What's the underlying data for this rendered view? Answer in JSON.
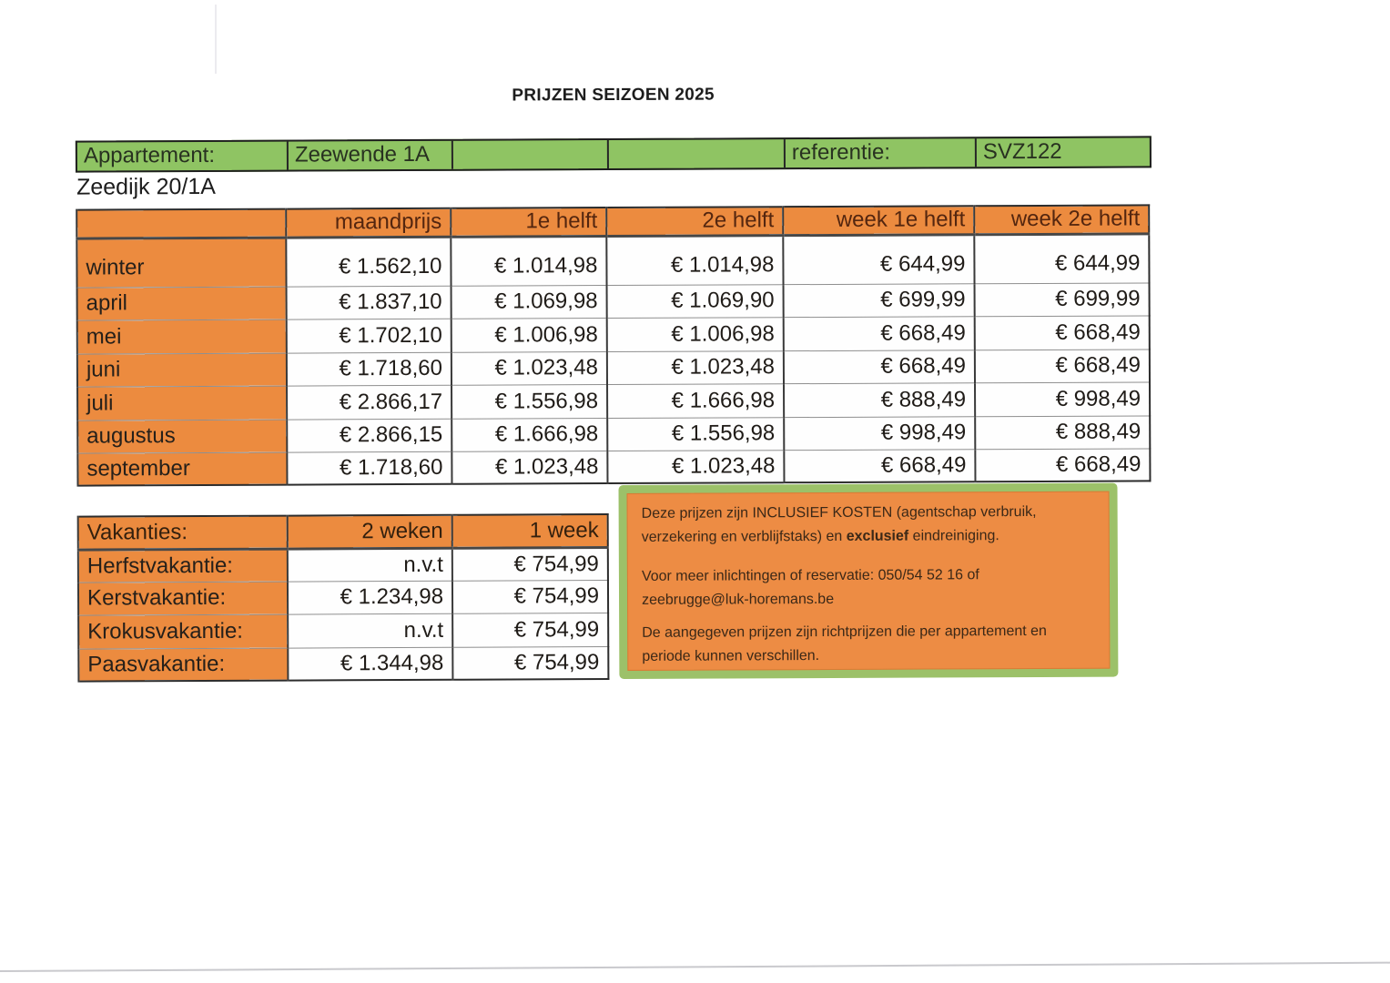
{
  "title": "PRIJZEN SEIZOEN 2025",
  "header_bar": {
    "appartement_label": "Appartement:",
    "appartement_value": "Zeewende 1A",
    "referentie_label": "referentie:",
    "referentie_value": "SVZ122"
  },
  "address": "Zeedijk 20/1A",
  "price_table": {
    "columns": [
      "maandprijs",
      "1e helft",
      "2e helft",
      "week 1e helft",
      "week 2e helft"
    ],
    "rows": [
      {
        "label": "winter",
        "values": [
          "€ 1.562,10",
          "€ 1.014,98",
          "€ 1.014,98",
          "€ 644,99",
          "€ 644,99"
        ]
      },
      {
        "label": "april",
        "values": [
          "€ 1.837,10",
          "€ 1.069,98",
          "€ 1.069,90",
          "€ 699,99",
          "€ 699,99"
        ]
      },
      {
        "label": "mei",
        "values": [
          "€ 1.702,10",
          "€ 1.006,98",
          "€ 1.006,98",
          "€ 668,49",
          "€ 668,49"
        ]
      },
      {
        "label": "juni",
        "values": [
          "€ 1.718,60",
          "€ 1.023,48",
          "€ 1.023,48",
          "€ 668,49",
          "€ 668,49"
        ]
      },
      {
        "label": "juli",
        "values": [
          "€ 2.866,17",
          "€ 1.556,98",
          "€ 1.666,98",
          "€ 888,49",
          "€ 998,49"
        ]
      },
      {
        "label": "augustus",
        "values": [
          "€ 2.866,15",
          "€ 1.666,98",
          "€ 1.556,98",
          "€ 998,49",
          "€ 888,49"
        ]
      },
      {
        "label": "september",
        "values": [
          "€ 1.718,60",
          "€ 1.023,48",
          "€ 1.023,48",
          "€ 668,49",
          "€ 668,49"
        ]
      }
    ]
  },
  "vacation_table": {
    "columns": [
      "Vakanties:",
      "2 weken",
      "1 week"
    ],
    "rows": [
      {
        "label": "Herfstvakantie:",
        "values": [
          "n.v.t",
          "€ 754,99"
        ]
      },
      {
        "label": "Kerstvakantie:",
        "values": [
          "€ 1.234,98",
          "€ 754,99"
        ]
      },
      {
        "label": "Krokusvakantie:",
        "values": [
          "n.v.t",
          "€ 754,99"
        ]
      },
      {
        "label": "Paasvakantie:",
        "values": [
          "€ 1.344,98",
          "€ 754,99"
        ]
      }
    ]
  },
  "info_box": {
    "p1_before": "Deze prijzen zijn INCLUSIEF KOSTEN (agentschap verbruik,\nverzekering en verblijfstaks) en ",
    "p1_bold": "exclusief",
    "p1_after": " eindreiniging.",
    "p2": "Voor meer inlichtingen of reservatie: 050/54 52 16 of\nzeebrugge@luk-horemans.be",
    "p3": "De aangegeven prijzen zijn richtprijzen die per appartement en\nperiode kunnen verschillen."
  },
  "colors": {
    "table_orange": "#ec8b3f",
    "header_green": "#8fc463",
    "info_box_border_green": "#9cc169",
    "info_box_orange": "#ed8c44"
  }
}
